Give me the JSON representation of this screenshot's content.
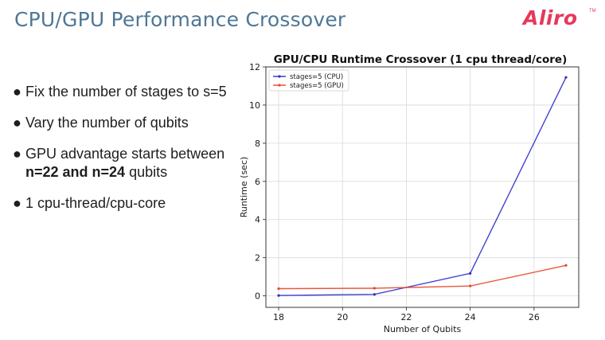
{
  "slide": {
    "title": "CPU/GPU Performance Crossover",
    "logo": "Aliro",
    "logo_tm": "TM"
  },
  "bullets": [
    {
      "parts": [
        {
          "text": "Fix the number of stages to s=5",
          "bold": false
        }
      ]
    },
    {
      "parts": [
        {
          "text": "Vary the number of qubits",
          "bold": false
        }
      ]
    },
    {
      "parts": [
        {
          "text": "GPU advantage starts between ",
          "bold": false
        },
        {
          "text": "n=22 and n=24",
          "bold": true
        },
        {
          "text": " qubits",
          "bold": false
        }
      ]
    },
    {
      "parts": [
        {
          "text": "1 cpu-thread/cpu-core",
          "bold": false
        }
      ]
    }
  ],
  "chart_data": {
    "type": "line",
    "title": "GPU/CPU Runtime Crossover (1 cpu thread/core)",
    "xlabel": "Number of Qubits",
    "ylabel": "Runtime (sec)",
    "xlim": [
      17.6,
      27.4
    ],
    "ylim": [
      -0.6,
      12.0
    ],
    "xticks": [
      18,
      20,
      22,
      24,
      26
    ],
    "yticks": [
      0,
      2,
      4,
      6,
      8,
      10,
      12
    ],
    "grid": true,
    "legend_position": "top-left",
    "series": [
      {
        "name": "stages=5 (CPU)",
        "color": "#2b2fc9",
        "x": [
          18,
          21,
          24,
          27
        ],
        "y": [
          0.02,
          0.08,
          1.18,
          11.45
        ]
      },
      {
        "name": "stages=5 (GPU)",
        "color": "#e8462a",
        "x": [
          18,
          21,
          24,
          27
        ],
        "y": [
          0.38,
          0.4,
          0.52,
          1.6
        ]
      }
    ]
  }
}
